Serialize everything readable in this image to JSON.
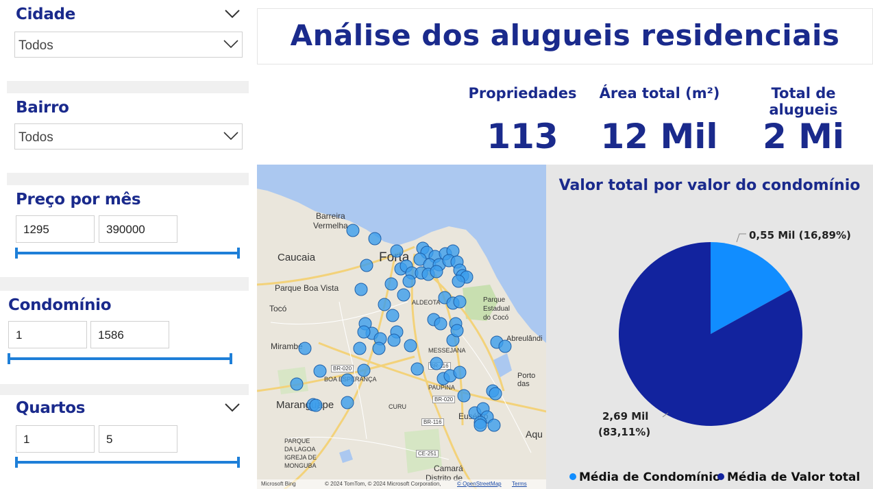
{
  "filters": {
    "cidade": {
      "title": "Cidade",
      "value": "Todos"
    },
    "bairro": {
      "title": "Bairro",
      "value": "Todos"
    },
    "preco": {
      "title": "Preço por mês",
      "min": "1295",
      "max": "390000"
    },
    "condominio": {
      "title": "Condomínio",
      "min": "1",
      "max": "1586"
    },
    "quartos": {
      "title": "Quartos",
      "min": "1",
      "max": "5"
    }
  },
  "header": {
    "title": "Análise dos alugueis residenciais"
  },
  "kpis": [
    {
      "label": "Propriedades",
      "value": "113"
    },
    {
      "label": "Área total (m²)",
      "value": "12 Mil"
    },
    {
      "label": "Total de alugueis",
      "value": "2 Mi"
    }
  ],
  "map": {
    "labels": {
      "barreira": "Barreira",
      "vermelha": "Vermelha",
      "caucaia": "Caucaia",
      "fortaleza": "Forta",
      "parque_boa_vista": "Parque Boa Vista",
      "toco": "Tocó",
      "aldeota": "ALDEOTA",
      "parque": "Parque",
      "estadual": "Estadual",
      "do_coco": "do Cocó",
      "abreulandia": "Abreulândi",
      "mirambe": "Mirambé",
      "br020a": "BR-020",
      "br020b": "BR-020",
      "br116a": "BR-116",
      "br116b": "BR-116",
      "ce251": "CE-251",
      "boa_esperanca": "BOA ESPERANÇA",
      "messejana": "MESSEJANA",
      "paupina": "PAUPINA",
      "porto_das": "Porto das",
      "maranguape": "Maranguape",
      "cucu": "CURU",
      "eusebio": "Eusébio",
      "aqu": "Aqu",
      "parque_label": "PARQUE",
      "da_lagoa": "DA LAGOA",
      "igreja": "IGREJA DE",
      "monguba": "MONGUBA",
      "camara": "Camará",
      "distrito": "Distrito de"
    },
    "footer": {
      "brand": "Microsoft Bing",
      "copyright": "© 2024 TomTom, © 2024 Microsoft Corporation,",
      "osm": "© OpenStreetMap",
      "terms": "Terms"
    }
  },
  "chart_data": {
    "type": "pie",
    "title": "Valor total por valor do condomínio",
    "slices": [
      {
        "name": "Média de Condomínio",
        "value": 0.55,
        "label": "0,55 Mil (16,89%)",
        "percent": 16.89,
        "color": "#118dff"
      },
      {
        "name": "Média de Valor total",
        "value": 2.69,
        "label_value": "2,69 Mil",
        "label_percent": "(83,11%)",
        "percent": 83.11,
        "color": "#12239e"
      }
    ],
    "legend": [
      "Média de Condomínio",
      "Média de Valor total"
    ],
    "legend_position": "bottom"
  }
}
